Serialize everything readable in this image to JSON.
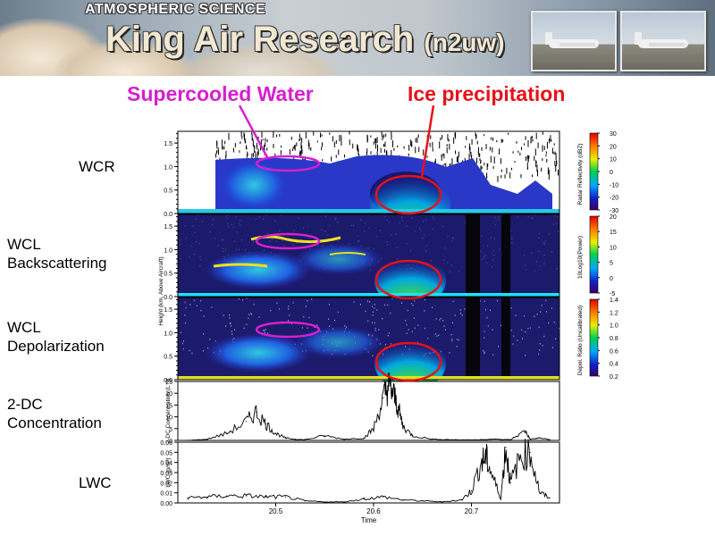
{
  "banner": {
    "subtitle": "ATMOSPHERIC SCIENCE",
    "title": "King Air Research",
    "title_suffix": "(n2uw)"
  },
  "annotations": {
    "supercooled": "Supercooled Water",
    "ice": "Ice precipitation"
  },
  "colors": {
    "supercooled": "#d61fd0",
    "ice": "#e8101a"
  },
  "row_labels": {
    "wcr": "WCR",
    "wcl_back": "WCL\nBackscattering",
    "wcl_depol": "WCL\nDepolarization",
    "twodc": "2-DC\nConcentration",
    "lwc": "LWC"
  },
  "chart_data": [
    {
      "type": "heatmap",
      "name": "WCR",
      "ylabel": "",
      "yticks": [
        "0.0",
        "0.5",
        "1.0",
        "1.5"
      ],
      "colorbar_label": "Radar Reflectivity (dBZ)",
      "colorbar_ticks": [
        "30",
        "20",
        "10",
        "0",
        "-10",
        "-20",
        "-30"
      ]
    },
    {
      "type": "heatmap",
      "name": "WCL Backscattering",
      "ylabel": "Height (km, Above Aircraft)",
      "yticks": [
        "0.0",
        "0.5",
        "1.0",
        "1.5"
      ],
      "colorbar_label": "10Log10(Power)",
      "colorbar_ticks": [
        "20",
        "15",
        "10",
        "5",
        "0",
        "-5"
      ]
    },
    {
      "type": "heatmap",
      "name": "WCL Depolarization",
      "ylabel": "",
      "yticks": [
        "0.0",
        "0.5",
        "1.0",
        "1.5"
      ],
      "colorbar_label": "Depol. Ratio (Uncalibrated)",
      "colorbar_ticks": [
        "1.4",
        "1.2",
        "1.0",
        "0.8",
        "0.6",
        "0.4",
        "0.2"
      ]
    },
    {
      "type": "line",
      "name": "2-DC Concentration",
      "ylabel": "2-DC Concentration (L⁻¹)",
      "ylim": [
        0,
        25
      ],
      "yticks": [
        "0",
        "5",
        "10",
        "15",
        "20",
        "25"
      ],
      "x": [
        20.41,
        20.43,
        20.45,
        20.47,
        20.48,
        20.49,
        20.5,
        20.51,
        20.52,
        20.53,
        20.55,
        20.57,
        20.59,
        20.6,
        20.61,
        20.615,
        20.62,
        20.625,
        20.63,
        20.64,
        20.66,
        20.68,
        20.7,
        20.72,
        20.74,
        20.755,
        20.76,
        20.77,
        20.78
      ],
      "values": [
        0,
        0.5,
        3,
        8,
        12,
        7,
        3,
        1,
        0.5,
        0.3,
        2,
        0.5,
        1,
        5,
        18,
        23,
        20,
        14,
        6,
        2,
        0.5,
        0.3,
        0.2,
        0.5,
        0.3,
        4,
        0.5,
        1,
        0.3
      ]
    },
    {
      "type": "line",
      "name": "LWC",
      "ylabel": "LWC (g/m³)",
      "ylim": [
        0,
        0.06
      ],
      "yticks": [
        "0.00",
        "0.01",
        "0.02",
        "0.03",
        "0.04",
        "0.05",
        "0.06"
      ],
      "x": [
        20.41,
        20.43,
        20.45,
        20.47,
        20.49,
        20.51,
        20.53,
        20.55,
        20.57,
        20.59,
        20.61,
        20.63,
        20.65,
        20.67,
        20.69,
        20.7,
        20.71,
        20.715,
        20.72,
        20.73,
        20.735,
        20.74,
        20.75,
        20.76,
        20.77,
        20.78
      ],
      "values": [
        0.005,
        0.006,
        0.007,
        0.007,
        0.006,
        0.006,
        0.002,
        0.001,
        0.001,
        0.004,
        0.006,
        0.003,
        0.002,
        0.001,
        0.003,
        0.012,
        0.04,
        0.045,
        0.03,
        0.005,
        0.055,
        0.02,
        0.045,
        0.05,
        0.01,
        0.005
      ],
      "xlabel": "Time",
      "xticks": [
        "20.5",
        "20.6",
        "20.7"
      ]
    }
  ]
}
